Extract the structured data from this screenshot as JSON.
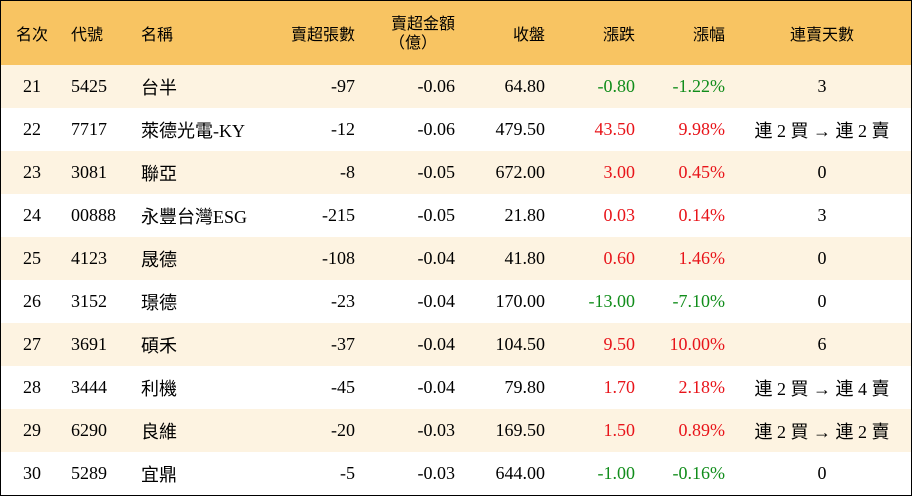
{
  "table": {
    "header": [
      "名次",
      "代號",
      "名稱",
      "賣超張數",
      "賣超金額",
      "收盤",
      "漲跌",
      "漲幅",
      "連賣天數"
    ],
    "header_note": "（億）",
    "rows": [
      [
        "21",
        "5425",
        "台半",
        "-97",
        "-0.06",
        "64.80",
        "-0.80",
        "-1.22%",
        "3"
      ],
      [
        "22",
        "7717",
        "萊德光電-KY",
        "-12",
        "-0.06",
        "479.50",
        "43.50",
        "9.98%",
        "連 2 買 → 連 2 賣"
      ],
      [
        "23",
        "3081",
        "聯亞",
        "-8",
        "-0.05",
        "672.00",
        "3.00",
        "0.45%",
        "0"
      ],
      [
        "24",
        "00888",
        "永豐台灣ESG",
        "-215",
        "-0.05",
        "21.80",
        "0.03",
        "0.14%",
        "3"
      ],
      [
        "25",
        "4123",
        "晟德",
        "-108",
        "-0.04",
        "41.80",
        "0.60",
        "1.46%",
        "0"
      ],
      [
        "26",
        "3152",
        "璟德",
        "-23",
        "-0.04",
        "170.00",
        "-13.00",
        "-7.10%",
        "0"
      ],
      [
        "27",
        "3691",
        "碩禾",
        "-37",
        "-0.04",
        "104.50",
        "9.50",
        "10.00%",
        "6"
      ],
      [
        "28",
        "3444",
        "利機",
        "-45",
        "-0.04",
        "79.80",
        "1.70",
        "2.18%",
        "連 2 買 → 連 4 賣"
      ],
      [
        "29",
        "6290",
        "良維",
        "-20",
        "-0.03",
        "169.50",
        "1.50",
        "0.89%",
        "連 2 買 → 連 2 賣"
      ],
      [
        "30",
        "5289",
        "宜鼎",
        "-5",
        "-0.03",
        "644.00",
        "-1.00",
        "-0.16%",
        "0"
      ]
    ]
  }
}
